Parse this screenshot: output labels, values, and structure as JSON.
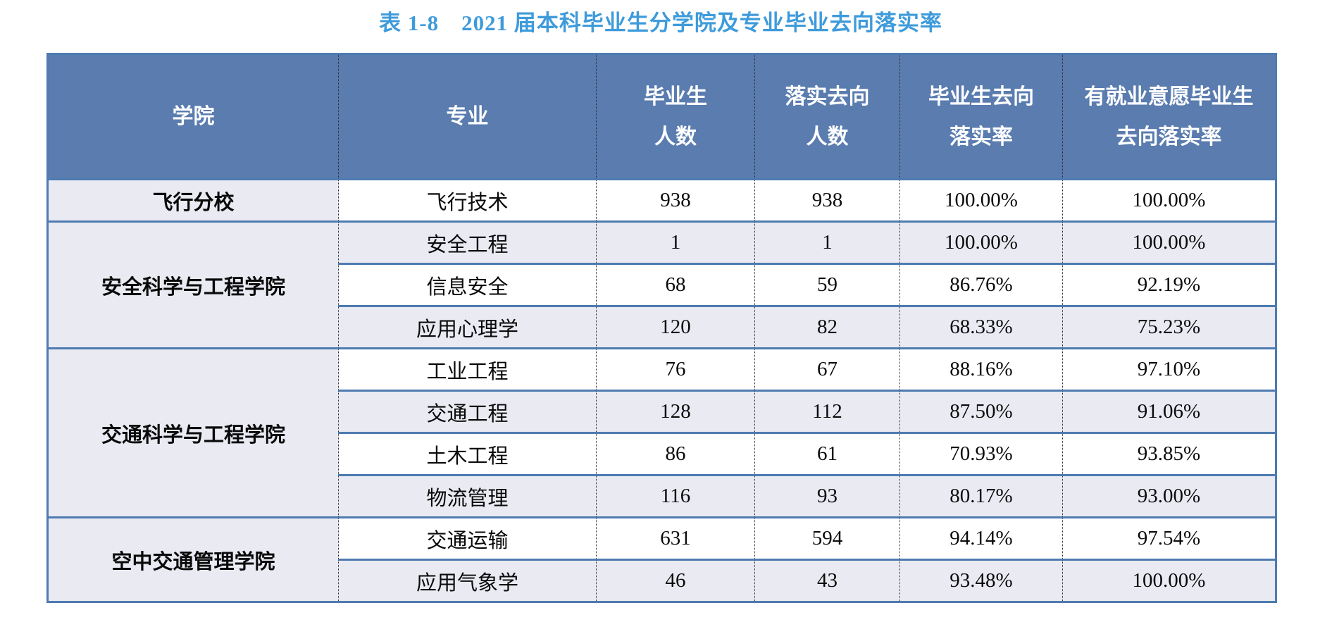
{
  "title": "表 1-8　2021 届本科毕业生分学院及专业毕业去向落实率",
  "colors": {
    "title_blue": "#3E9BDB",
    "header_bg": "#5A7CAF",
    "header_text": "#FFFFFF",
    "border_blue": "#4E7BB0",
    "row_alt": "#E9EAF2"
  },
  "table": {
    "columns": [
      {
        "key": "college",
        "lines": [
          "学院"
        ]
      },
      {
        "key": "major",
        "lines": [
          "专业"
        ]
      },
      {
        "key": "graduates",
        "lines": [
          "毕业生",
          "人数"
        ]
      },
      {
        "key": "implemented",
        "lines": [
          "落实去向",
          "人数"
        ]
      },
      {
        "key": "rate",
        "lines": [
          "毕业生去向",
          "落实率"
        ]
      },
      {
        "key": "willing-rate",
        "lines": [
          "有就业意愿毕业生",
          "去向落实率"
        ]
      }
    ],
    "groups": [
      {
        "college": "飞行分校",
        "rows": [
          {
            "major": "飞行技术",
            "graduates": "938",
            "implemented": "938",
            "rate": "100.00%",
            "willing_rate": "100.00%"
          }
        ]
      },
      {
        "college": "安全科学与工程学院",
        "rows": [
          {
            "major": "安全工程",
            "graduates": "1",
            "implemented": "1",
            "rate": "100.00%",
            "willing_rate": "100.00%"
          },
          {
            "major": "信息安全",
            "graduates": "68",
            "implemented": "59",
            "rate": "86.76%",
            "willing_rate": "92.19%"
          },
          {
            "major": "应用心理学",
            "graduates": "120",
            "implemented": "82",
            "rate": "68.33%",
            "willing_rate": "75.23%"
          }
        ]
      },
      {
        "college": "交通科学与工程学院",
        "rows": [
          {
            "major": "工业工程",
            "graduates": "76",
            "implemented": "67",
            "rate": "88.16%",
            "willing_rate": "97.10%"
          },
          {
            "major": "交通工程",
            "graduates": "128",
            "implemented": "112",
            "rate": "87.50%",
            "willing_rate": "91.06%"
          },
          {
            "major": "土木工程",
            "graduates": "86",
            "implemented": "61",
            "rate": "70.93%",
            "willing_rate": "93.85%"
          },
          {
            "major": "物流管理",
            "graduates": "116",
            "implemented": "93",
            "rate": "80.17%",
            "willing_rate": "93.00%"
          }
        ]
      },
      {
        "college": "空中交通管理学院",
        "rows": [
          {
            "major": "交通运输",
            "graduates": "631",
            "implemented": "594",
            "rate": "94.14%",
            "willing_rate": "97.54%"
          },
          {
            "major": "应用气象学",
            "graduates": "46",
            "implemented": "43",
            "rate": "93.48%",
            "willing_rate": "100.00%"
          }
        ]
      }
    ]
  }
}
